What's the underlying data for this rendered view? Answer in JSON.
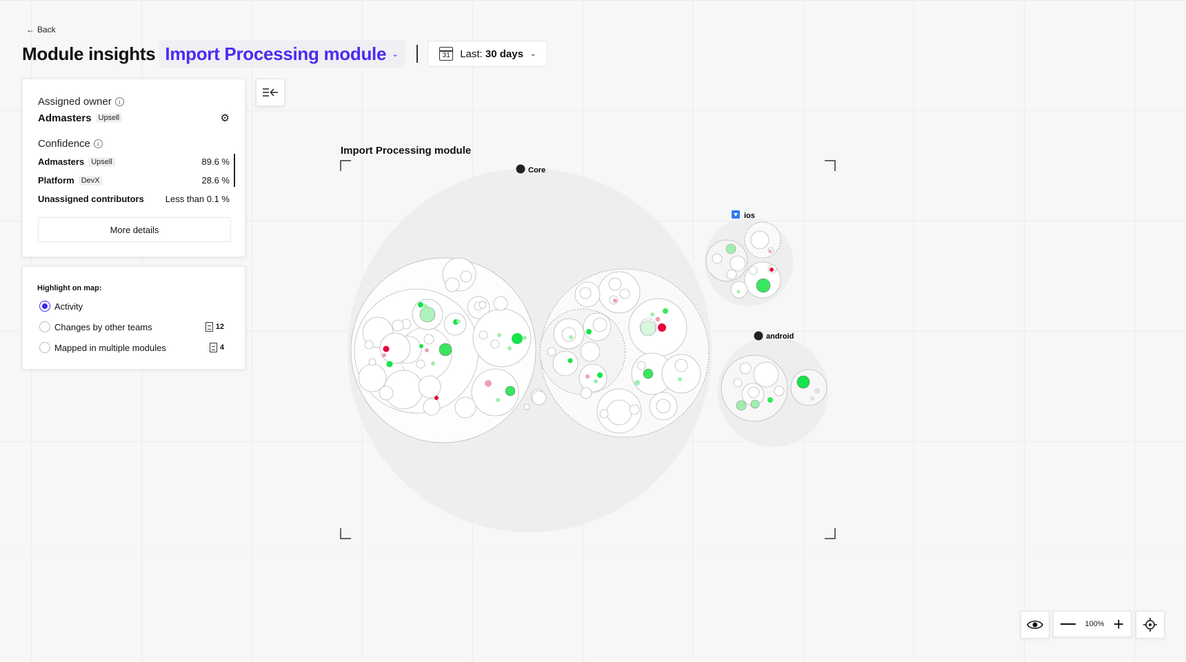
{
  "nav": {
    "back_label": "Back"
  },
  "header": {
    "title": "Module insights",
    "module_name": "Import Processing module",
    "date_prefix": "Last:",
    "date_value": "30 days",
    "calendar_day": "31"
  },
  "owner_panel": {
    "assigned_owner_label": "Assigned owner",
    "owner_name": "Admasters",
    "owner_tag": "Upsell",
    "confidence_label": "Confidence",
    "confidence_rows": [
      {
        "name": "Admasters",
        "tag": "Upsell",
        "value": "89.6 %"
      },
      {
        "name": "Platform",
        "tag": "DevX",
        "value": "28.6 %"
      },
      {
        "name": "Unassigned contributors",
        "tag": "",
        "value": "Less than 0.1 %"
      }
    ],
    "more_details_label": "More details"
  },
  "highlight_panel": {
    "title": "Highlight on map:",
    "options": [
      {
        "label": "Activity",
        "selected": true,
        "count": ""
      },
      {
        "label": "Changes by other teams",
        "selected": false,
        "count": "12"
      },
      {
        "label": "Mapped in multiple modules",
        "selected": false,
        "count": "4"
      }
    ]
  },
  "map": {
    "title": "Import Processing module",
    "repos": [
      {
        "name": "Core",
        "icon": "github-icon"
      },
      {
        "name": "ios",
        "icon": "swift-icon"
      },
      {
        "name": "android",
        "icon": "github-icon"
      }
    ]
  },
  "controls": {
    "zoom_label": "100%"
  },
  "colors": {
    "accent": "#4a2cf0",
    "activity_green": "#17e34a",
    "activity_red": "#e8003a",
    "activity_pink": "#f0a0b4",
    "activity_light_green": "#9fefb0"
  }
}
